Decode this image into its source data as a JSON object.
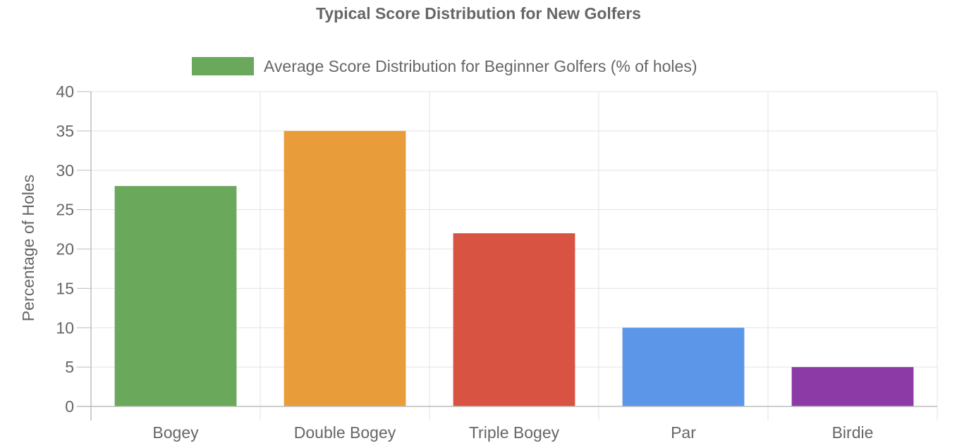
{
  "chart_data": {
    "type": "bar",
    "title": "Typical Score Distribution for New Golfers",
    "xlabel": "",
    "ylabel": "Percentage of Holes",
    "categories": [
      "Bogey",
      "Double Bogey",
      "Triple Bogey",
      "Par",
      "Birdie"
    ],
    "series": [
      {
        "name": "Average Score Distribution for Beginner Golfers (% of holes)",
        "values": [
          28,
          35,
          22,
          10,
          5
        ],
        "colors": [
          "#6aa85c",
          "#e89c3a",
          "#d95343",
          "#5b96e8",
          "#8b3aa6"
        ]
      }
    ],
    "ylim": [
      0,
      40
    ],
    "yticks": [
      0,
      5,
      10,
      15,
      20,
      25,
      30,
      35,
      40
    ],
    "grid": true,
    "legend_position": "top"
  }
}
